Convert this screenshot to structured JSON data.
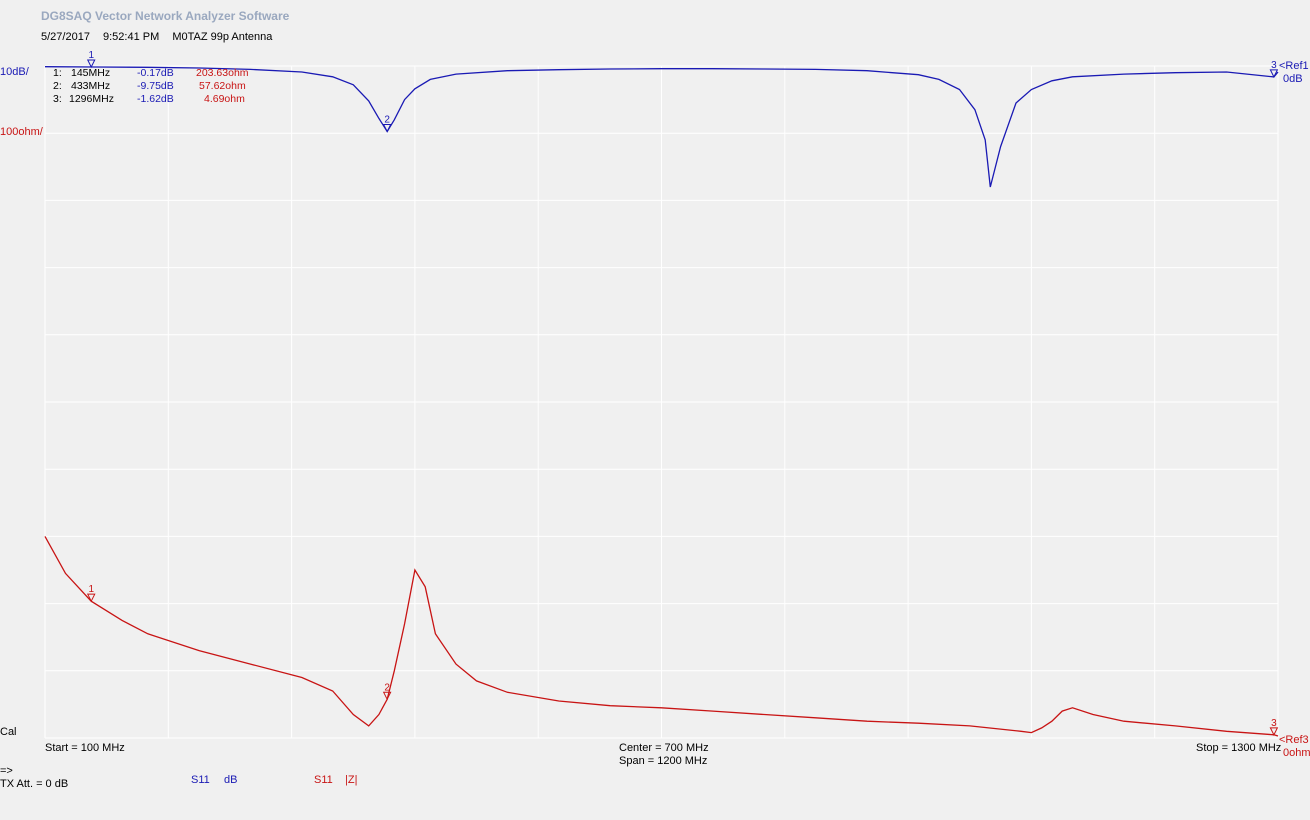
{
  "header": {
    "app_title": "DG8SAQ Vector Network Analyzer Software",
    "date": "5/27/2017",
    "time": "9:52:41 PM",
    "description": "M0TAZ 99p Antenna"
  },
  "scales": {
    "trace1_scale": "10dB/",
    "trace3_scale": "100ohm/",
    "ref1_label": "<Ref1",
    "ref1_value": "0dB",
    "ref3_label": "<Ref3",
    "ref3_value": "0ohm"
  },
  "markers": [
    {
      "id": "1:",
      "freq": "145MHz",
      "s11_db": "-0.17dB",
      "z": "203.63ohm"
    },
    {
      "id": "2:",
      "freq": "433MHz",
      "s11_db": "-9.75dB",
      "z": "57.62ohm"
    },
    {
      "id": "3:",
      "freq": "1296MHz",
      "s11_db": "-1.62dB",
      "z": "4.69ohm"
    }
  ],
  "axis": {
    "start": "Start = 100 MHz",
    "center": "Center = 700 MHz",
    "span": "Span = 1200 MHz",
    "stop": "Stop = 1300 MHz"
  },
  "footer": {
    "cal": "Cal",
    "arrow": "=>",
    "tx_att": "TX Att.  = 0 dB",
    "trace1_name": "S11",
    "trace1_unit": "dB",
    "trace3_name": "S11",
    "trace3_unit": "|Z|"
  },
  "colors": {
    "trace1": "#1a1ab4",
    "trace3": "#c81414",
    "grid": "#ffffff",
    "background": "#f0f0f0"
  },
  "chart_data": {
    "type": "line",
    "x_unit": "MHz",
    "xlim": [
      100,
      1300
    ],
    "grid": true,
    "series": [
      {
        "name": "S11 dB",
        "unit": "dB",
        "scale_per_div": 10,
        "ref": 0,
        "x": [
          100,
          150,
          200,
          250,
          300,
          350,
          380,
          400,
          415,
          425,
          433,
          440,
          450,
          460,
          475,
          500,
          550,
          600,
          650,
          700,
          750,
          800,
          850,
          900,
          950,
          970,
          990,
          1005,
          1015,
          1020,
          1030,
          1045,
          1060,
          1080,
          1100,
          1150,
          1200,
          1250,
          1296,
          1300
        ],
        "y": [
          -0.1,
          -0.15,
          -0.2,
          -0.3,
          -0.5,
          -0.9,
          -1.6,
          -2.8,
          -5.2,
          -7.8,
          -9.75,
          -8.0,
          -5.0,
          -3.4,
          -2.0,
          -1.2,
          -0.7,
          -0.55,
          -0.45,
          -0.4,
          -0.4,
          -0.45,
          -0.5,
          -0.7,
          -1.3,
          -2.0,
          -3.5,
          -6.5,
          -11.0,
          -18.0,
          -12.0,
          -5.5,
          -3.5,
          -2.2,
          -1.6,
          -1.2,
          -1.0,
          -0.9,
          -1.62,
          -0.9
        ]
      },
      {
        "name": "S11 |Z|",
        "unit": "ohm",
        "scale_per_div": 100,
        "ref": 0,
        "x": [
          100,
          120,
          145,
          175,
          200,
          250,
          300,
          350,
          380,
          400,
          415,
          425,
          433,
          440,
          450,
          460,
          470,
          480,
          500,
          520,
          550,
          600,
          650,
          700,
          750,
          800,
          850,
          900,
          950,
          1000,
          1050,
          1060,
          1070,
          1080,
          1090,
          1100,
          1120,
          1150,
          1200,
          1250,
          1296,
          1300
        ],
        "y": [
          300,
          245,
          203.6,
          175,
          155,
          130,
          110,
          90,
          70,
          35,
          18,
          35,
          57.6,
          100,
          170,
          250,
          225,
          155,
          110,
          85,
          68,
          55,
          48,
          45,
          40,
          35,
          30,
          25,
          22,
          18,
          10,
          8,
          15,
          25,
          40,
          45,
          35,
          25,
          18,
          10,
          4.69,
          3
        ]
      }
    ],
    "markers": [
      {
        "label": "1",
        "x": 145
      },
      {
        "label": "2",
        "x": 433
      },
      {
        "label": "3",
        "x": 1296
      }
    ]
  }
}
